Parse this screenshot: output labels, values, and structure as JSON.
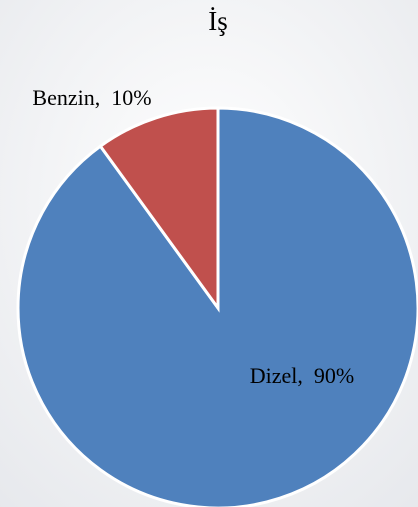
{
  "chart_data": {
    "type": "pie",
    "title": "İş",
    "values": [
      90,
      10
    ],
    "value_labels": [
      "Dizel,  90%",
      "Benzin,  10%"
    ],
    "colors": [
      "#4f81bd",
      "#c0504d"
    ]
  }
}
